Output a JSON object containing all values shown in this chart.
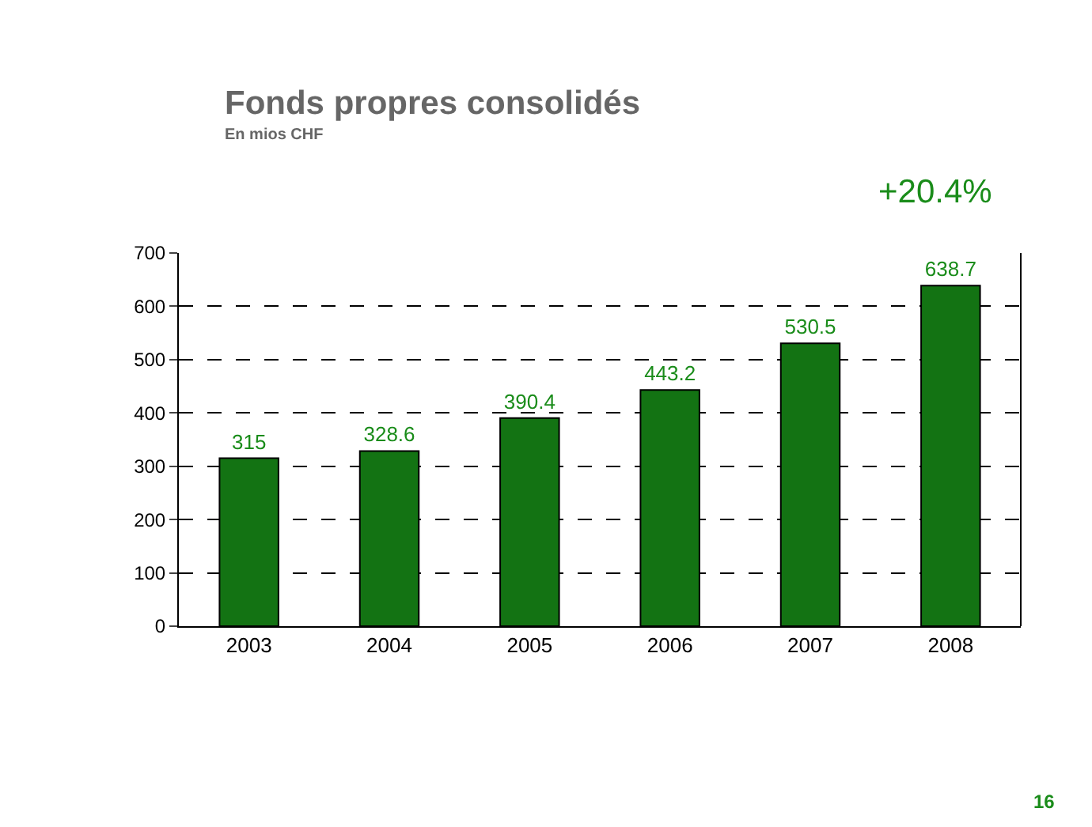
{
  "chart_data": {
    "type": "bar",
    "title": "Fonds propres consolidés",
    "subtitle": "En mios CHF",
    "categories": [
      "2003",
      "2004",
      "2005",
      "2006",
      "2007",
      "2008"
    ],
    "values": [
      315,
      328.6,
      390.4,
      443.2,
      530.5,
      638.7
    ],
    "color": "#137313",
    "ylim": [
      0,
      700
    ],
    "yticks": [
      0,
      100,
      200,
      300,
      400,
      500,
      600,
      700
    ],
    "grid": "y",
    "data_labels": true,
    "legend": false,
    "annotations": [
      "+20.4%",
      "16"
    ]
  }
}
